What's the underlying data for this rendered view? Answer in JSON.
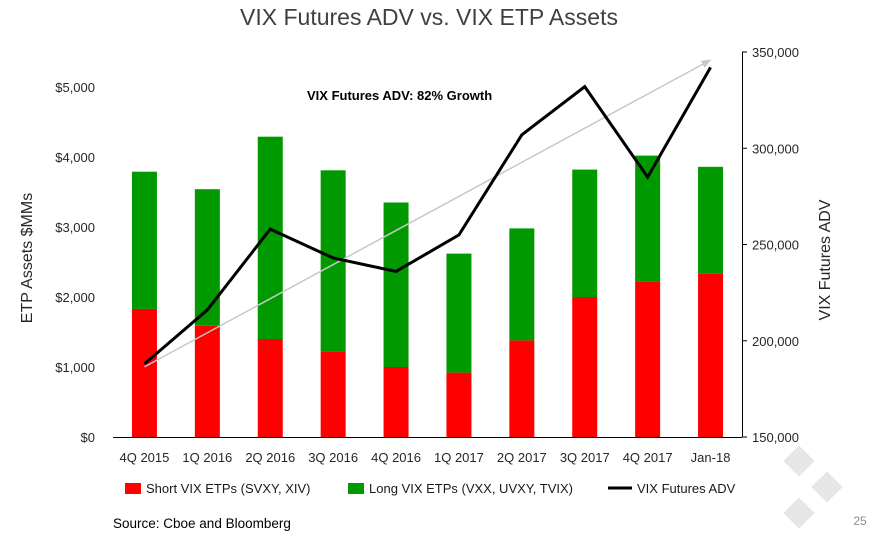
{
  "chart_data": {
    "type": "bar",
    "title": "VIX Futures ADV vs. VIX ETP Assets",
    "ylabel": "ETP Assets $MMs",
    "y2label": "VIX Futures ADV",
    "ylim": [
      0,
      5000
    ],
    "y2lim": [
      150000,
      350000
    ],
    "y_ticks": [
      "$0",
      "$1,000",
      "$2,000",
      "$3,000",
      "$4,000",
      "$5,000"
    ],
    "y2_ticks": [
      "150,000",
      "200,000",
      "250,000",
      "300,000",
      "350,000"
    ],
    "categories": [
      "4Q 2015",
      "1Q 2016",
      "2Q 2016",
      "3Q 2016",
      "4Q 2016",
      "1Q 2017",
      "2Q 2017",
      "3Q 2017",
      "4Q 2017",
      "Jan-18"
    ],
    "series": [
      {
        "name": "Short VIX ETPs (SVXY, XIV)",
        "kind": "stacked-bar",
        "color": "#ff0000",
        "values": [
          1830,
          1590,
          1400,
          1220,
          1000,
          920,
          1380,
          2000,
          2220,
          2330
        ]
      },
      {
        "name": "Long VIX ETPs (VXX, UVXY, TVIX)",
        "kind": "stacked-bar",
        "color": "#009900",
        "values": [
          1960,
          1950,
          2890,
          2590,
          2350,
          1700,
          1600,
          1820,
          1800,
          1530
        ]
      },
      {
        "name": "VIX Futures ADV",
        "kind": "line",
        "axis": "right",
        "color": "#000000",
        "values": [
          188000,
          216000,
          258000,
          243000,
          236000,
          255000,
          307000,
          332000,
          285000,
          342000
        ]
      }
    ],
    "annotations": [
      {
        "text": "VIX Futures ADV: 82% Growth"
      }
    ],
    "legend_position": "bottom"
  },
  "source": "Source: Cboe and Bloomberg",
  "page_number": "25"
}
